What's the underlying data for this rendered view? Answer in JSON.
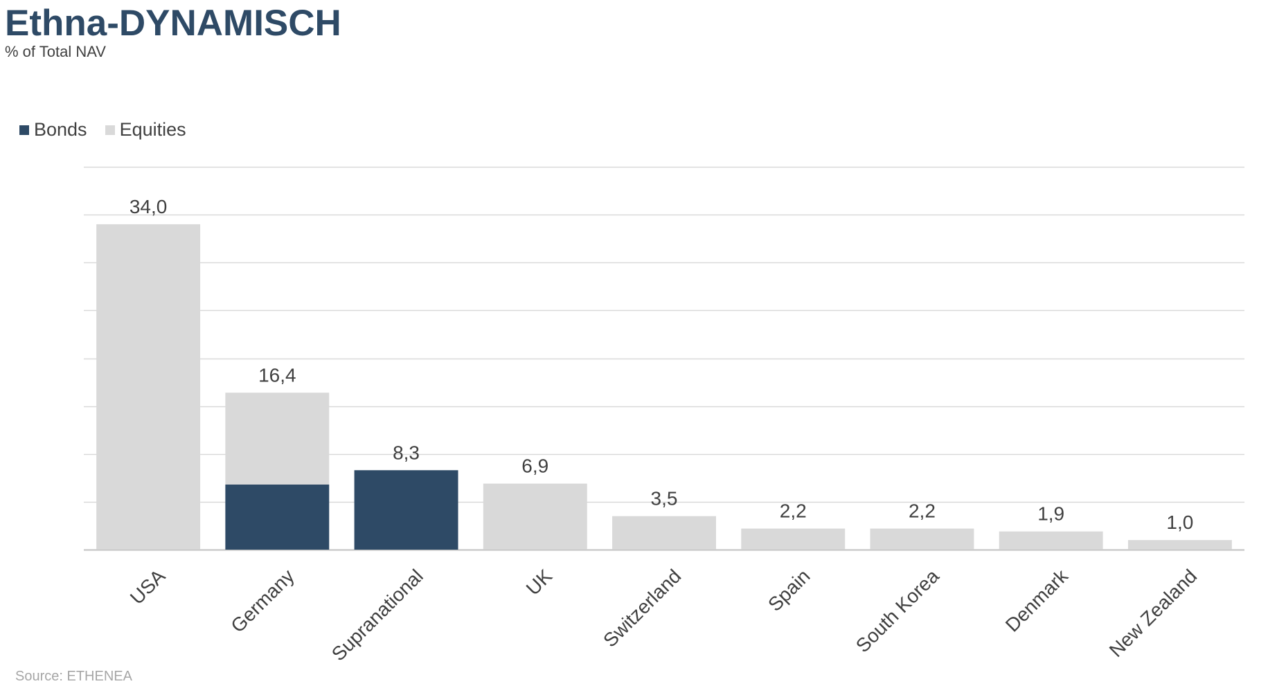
{
  "title": "Ethna-DYNAMISCH",
  "subtitle": "% of Total NAV",
  "source": "Source: ETHENEA",
  "colors": {
    "bonds": "#2e4a66",
    "equities": "#d9d9d9",
    "grid": "#d9d9d9",
    "axis": "#bfbfbf",
    "text": "#404040",
    "title": "#2e4a66"
  },
  "legend": {
    "items": [
      {
        "label": "Bonds",
        "color": "#2e4a66"
      },
      {
        "label": "Equities",
        "color": "#d9d9d9"
      }
    ],
    "position": "top-left"
  },
  "chart_data": {
    "type": "bar",
    "stacked": true,
    "title": "Ethna-DYNAMISCH",
    "subtitle": "% of Total NAV",
    "categories": [
      "USA",
      "Germany",
      "Supranational",
      "UK",
      "Switzerland",
      "Spain",
      "South Korea",
      "Denmark",
      "New Zealand"
    ],
    "series": [
      {
        "name": "Bonds",
        "values": [
          0,
          6.8,
          8.3,
          0,
          0,
          0,
          0,
          0,
          0
        ]
      },
      {
        "name": "Equities",
        "values": [
          34.0,
          9.6,
          0,
          6.9,
          3.5,
          2.2,
          2.2,
          1.9,
          1.0
        ]
      }
    ],
    "totals": [
      "34,0",
      "16,4",
      "8,3",
      "6,9",
      "3,5",
      "2,2",
      "2,2",
      "1,9",
      "1,0"
    ],
    "ylim": [
      0,
      40
    ],
    "ytick_step": 5,
    "grid": true,
    "y_tick_labels_shown": false,
    "xlabel": "",
    "ylabel": ""
  }
}
